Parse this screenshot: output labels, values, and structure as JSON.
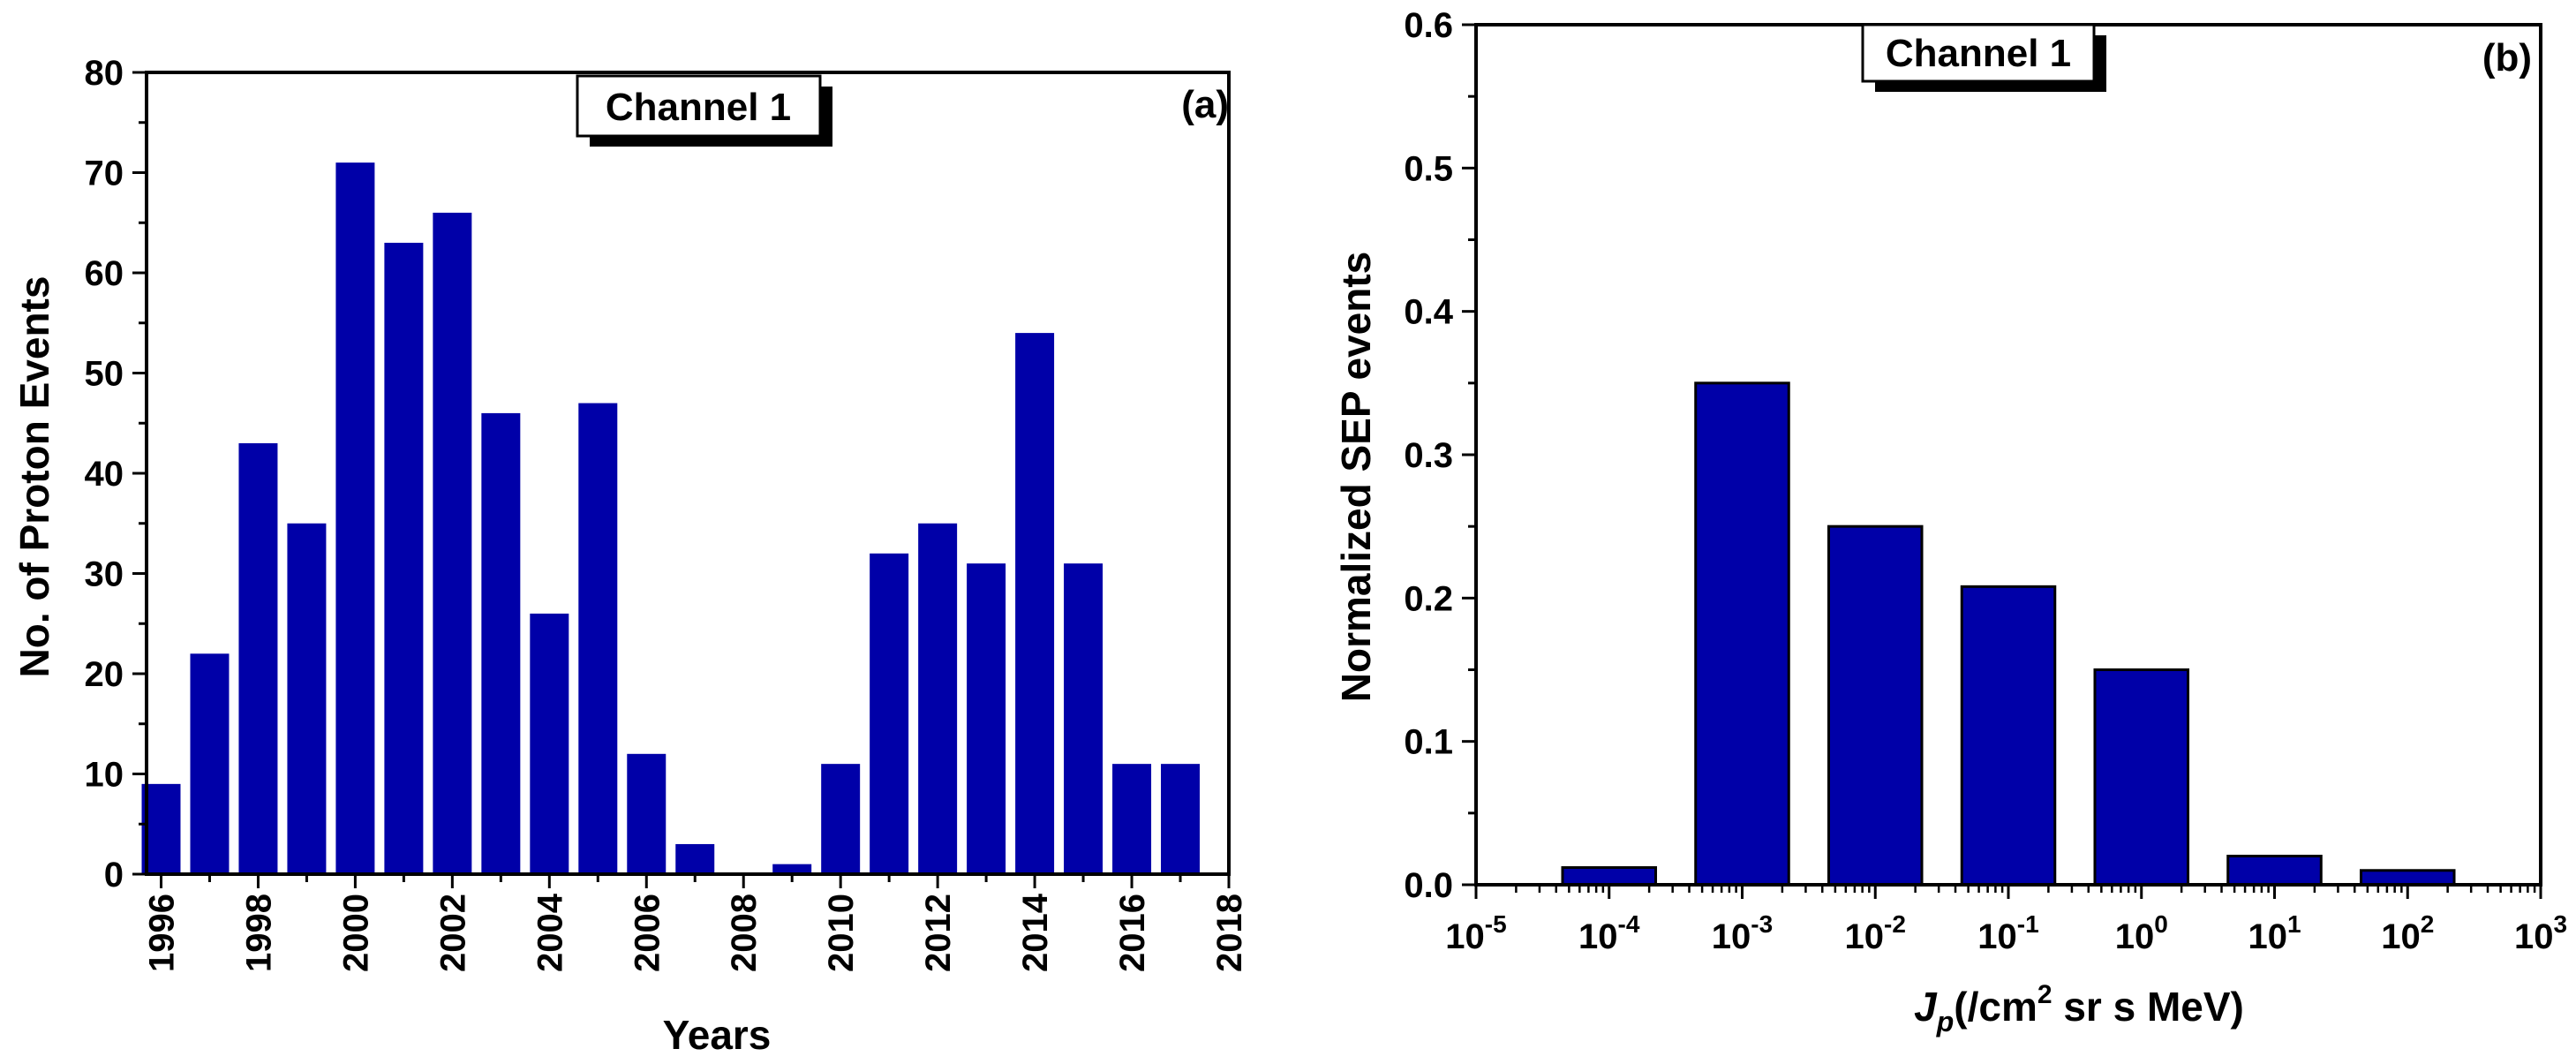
{
  "chart_data": [
    {
      "type": "bar",
      "panel_label": "(a)",
      "legend_box": "Channel 1",
      "xlabel": "Years",
      "ylabel": "No. of Proton Events",
      "xlim": [
        1995.7,
        2018
      ],
      "ylim": [
        0,
        80
      ],
      "x_ticks": [
        1996,
        1998,
        2000,
        2002,
        2004,
        2006,
        2008,
        2010,
        2012,
        2014,
        2016,
        2018
      ],
      "x_tick_labels": [
        "1996",
        "1998",
        "2000",
        "2002",
        "2004",
        "2006",
        "2008",
        "2010",
        "2012",
        "2014",
        "2016",
        "2018"
      ],
      "y_ticks": [
        0,
        10,
        20,
        30,
        40,
        50,
        60,
        70,
        80
      ],
      "y_tick_labels": [
        "0",
        "10",
        "20",
        "30",
        "40",
        "50",
        "60",
        "70",
        "80"
      ],
      "bar_color": "#0000a8",
      "categories": [
        1996,
        1997,
        1998,
        1999,
        2000,
        2001,
        2002,
        2003,
        2004,
        2005,
        2006,
        2007,
        2008,
        2009,
        2010,
        2011,
        2012,
        2013,
        2014,
        2015,
        2016,
        2017
      ],
      "values": [
        9,
        22,
        43,
        35,
        71,
        63,
        66,
        46,
        26,
        47,
        12,
        3,
        0,
        1,
        11,
        32,
        35,
        31,
        54,
        31,
        11,
        11
      ]
    },
    {
      "type": "bar",
      "panel_label": "(b)",
      "legend_box": "Channel 1",
      "xlabel": {
        "main": "J",
        "sub": "p",
        "pre": "(/cm",
        "sup": "2",
        "post": " sr s MeV)"
      },
      "ylabel": "Normalized SEP events",
      "xscale": "log",
      "xlim_exp": [
        -5,
        3
      ],
      "ylim": [
        0,
        0.6
      ],
      "x_tick_exponents": [
        "-5",
        "-4",
        "-3",
        "-2",
        "-1",
        "0",
        "1",
        "2",
        "3"
      ],
      "x_tick_base": "10",
      "y_ticks": [
        0,
        0.1,
        0.2,
        0.3,
        0.4,
        0.5,
        0.6
      ],
      "y_tick_labels": [
        "0.0",
        "0.1",
        "0.2",
        "0.3",
        "0.4",
        "0.5",
        "0.6"
      ],
      "bar_color": "#0000a8",
      "bins": [
        {
          "center_exp": -4,
          "value": 0.012
        },
        {
          "center_exp": -3,
          "value": 0.35
        },
        {
          "center_exp": -2,
          "value": 0.25
        },
        {
          "center_exp": -1,
          "value": 0.208
        },
        {
          "center_exp": 0,
          "value": 0.15
        },
        {
          "center_exp": 1,
          "value": 0.02
        },
        {
          "center_exp": 2,
          "value": 0.01
        }
      ]
    }
  ]
}
